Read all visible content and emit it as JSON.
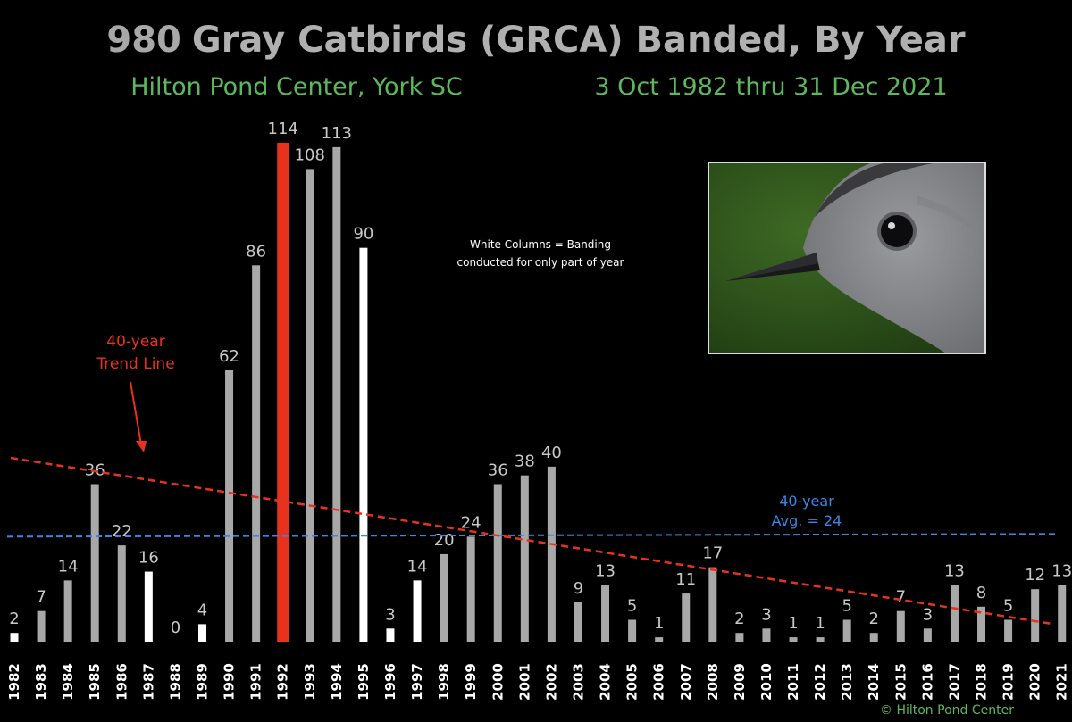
{
  "chart_data": {
    "type": "bar",
    "title_number": "980",
    "title_text": "Gray Catbirds (GRCA) Banded, By Year",
    "subtitle_left": "Hilton Pond Center, York SC",
    "subtitle_right": "3 Oct 1982 thru  31 Dec 2021",
    "categories": [
      "1982",
      "1983",
      "1984",
      "1985",
      "1986",
      "1987",
      "1988",
      "1989",
      "1990",
      "1991",
      "1992",
      "1993",
      "1994",
      "1995",
      "1996",
      "1997",
      "1998",
      "1999",
      "2000",
      "2001",
      "2002",
      "2003",
      "2004",
      "2005",
      "2006",
      "2007",
      "2008",
      "2009",
      "2010",
      "2011",
      "2012",
      "2013",
      "2014",
      "2015",
      "2016",
      "2017",
      "2018",
      "2019",
      "2020",
      "2021"
    ],
    "values": [
      2,
      7,
      14,
      36,
      22,
      16,
      0,
      4,
      62,
      86,
      114,
      108,
      113,
      90,
      3,
      14,
      20,
      24,
      36,
      38,
      40,
      9,
      13,
      5,
      1,
      11,
      17,
      2,
      3,
      1,
      1,
      5,
      2,
      7,
      3,
      13,
      8,
      5,
      12,
      13
    ],
    "partial_year_categories": [
      "1982",
      "1987",
      "1989",
      "1995",
      "1996",
      "1997"
    ],
    "highlight_category": "1992",
    "colors": {
      "full_year": "#a8a8a8",
      "partial_year": "#ffffff",
      "highlight": "#e8321e",
      "trend": "#e8321e",
      "average": "#3a86e8",
      "title_number": "#a8a8a8",
      "title_text": "#b0b0b0",
      "subtitle": "#5cb85c",
      "value_label": "#c8c8c8"
    },
    "average_value": 24,
    "average_label_line1": "40-year",
    "average_label_line2": "Avg. = 24",
    "trend_start_value": 42,
    "trend_end_value": 4,
    "trend_label_line1": "40-year",
    "trend_label_line2": "Trend Line",
    "note_line1": "White Columns = Banding",
    "note_line2": "conducted for only part of year",
    "credit": "© Hilton Pond Center",
    "ylim": [
      0,
      114
    ]
  }
}
